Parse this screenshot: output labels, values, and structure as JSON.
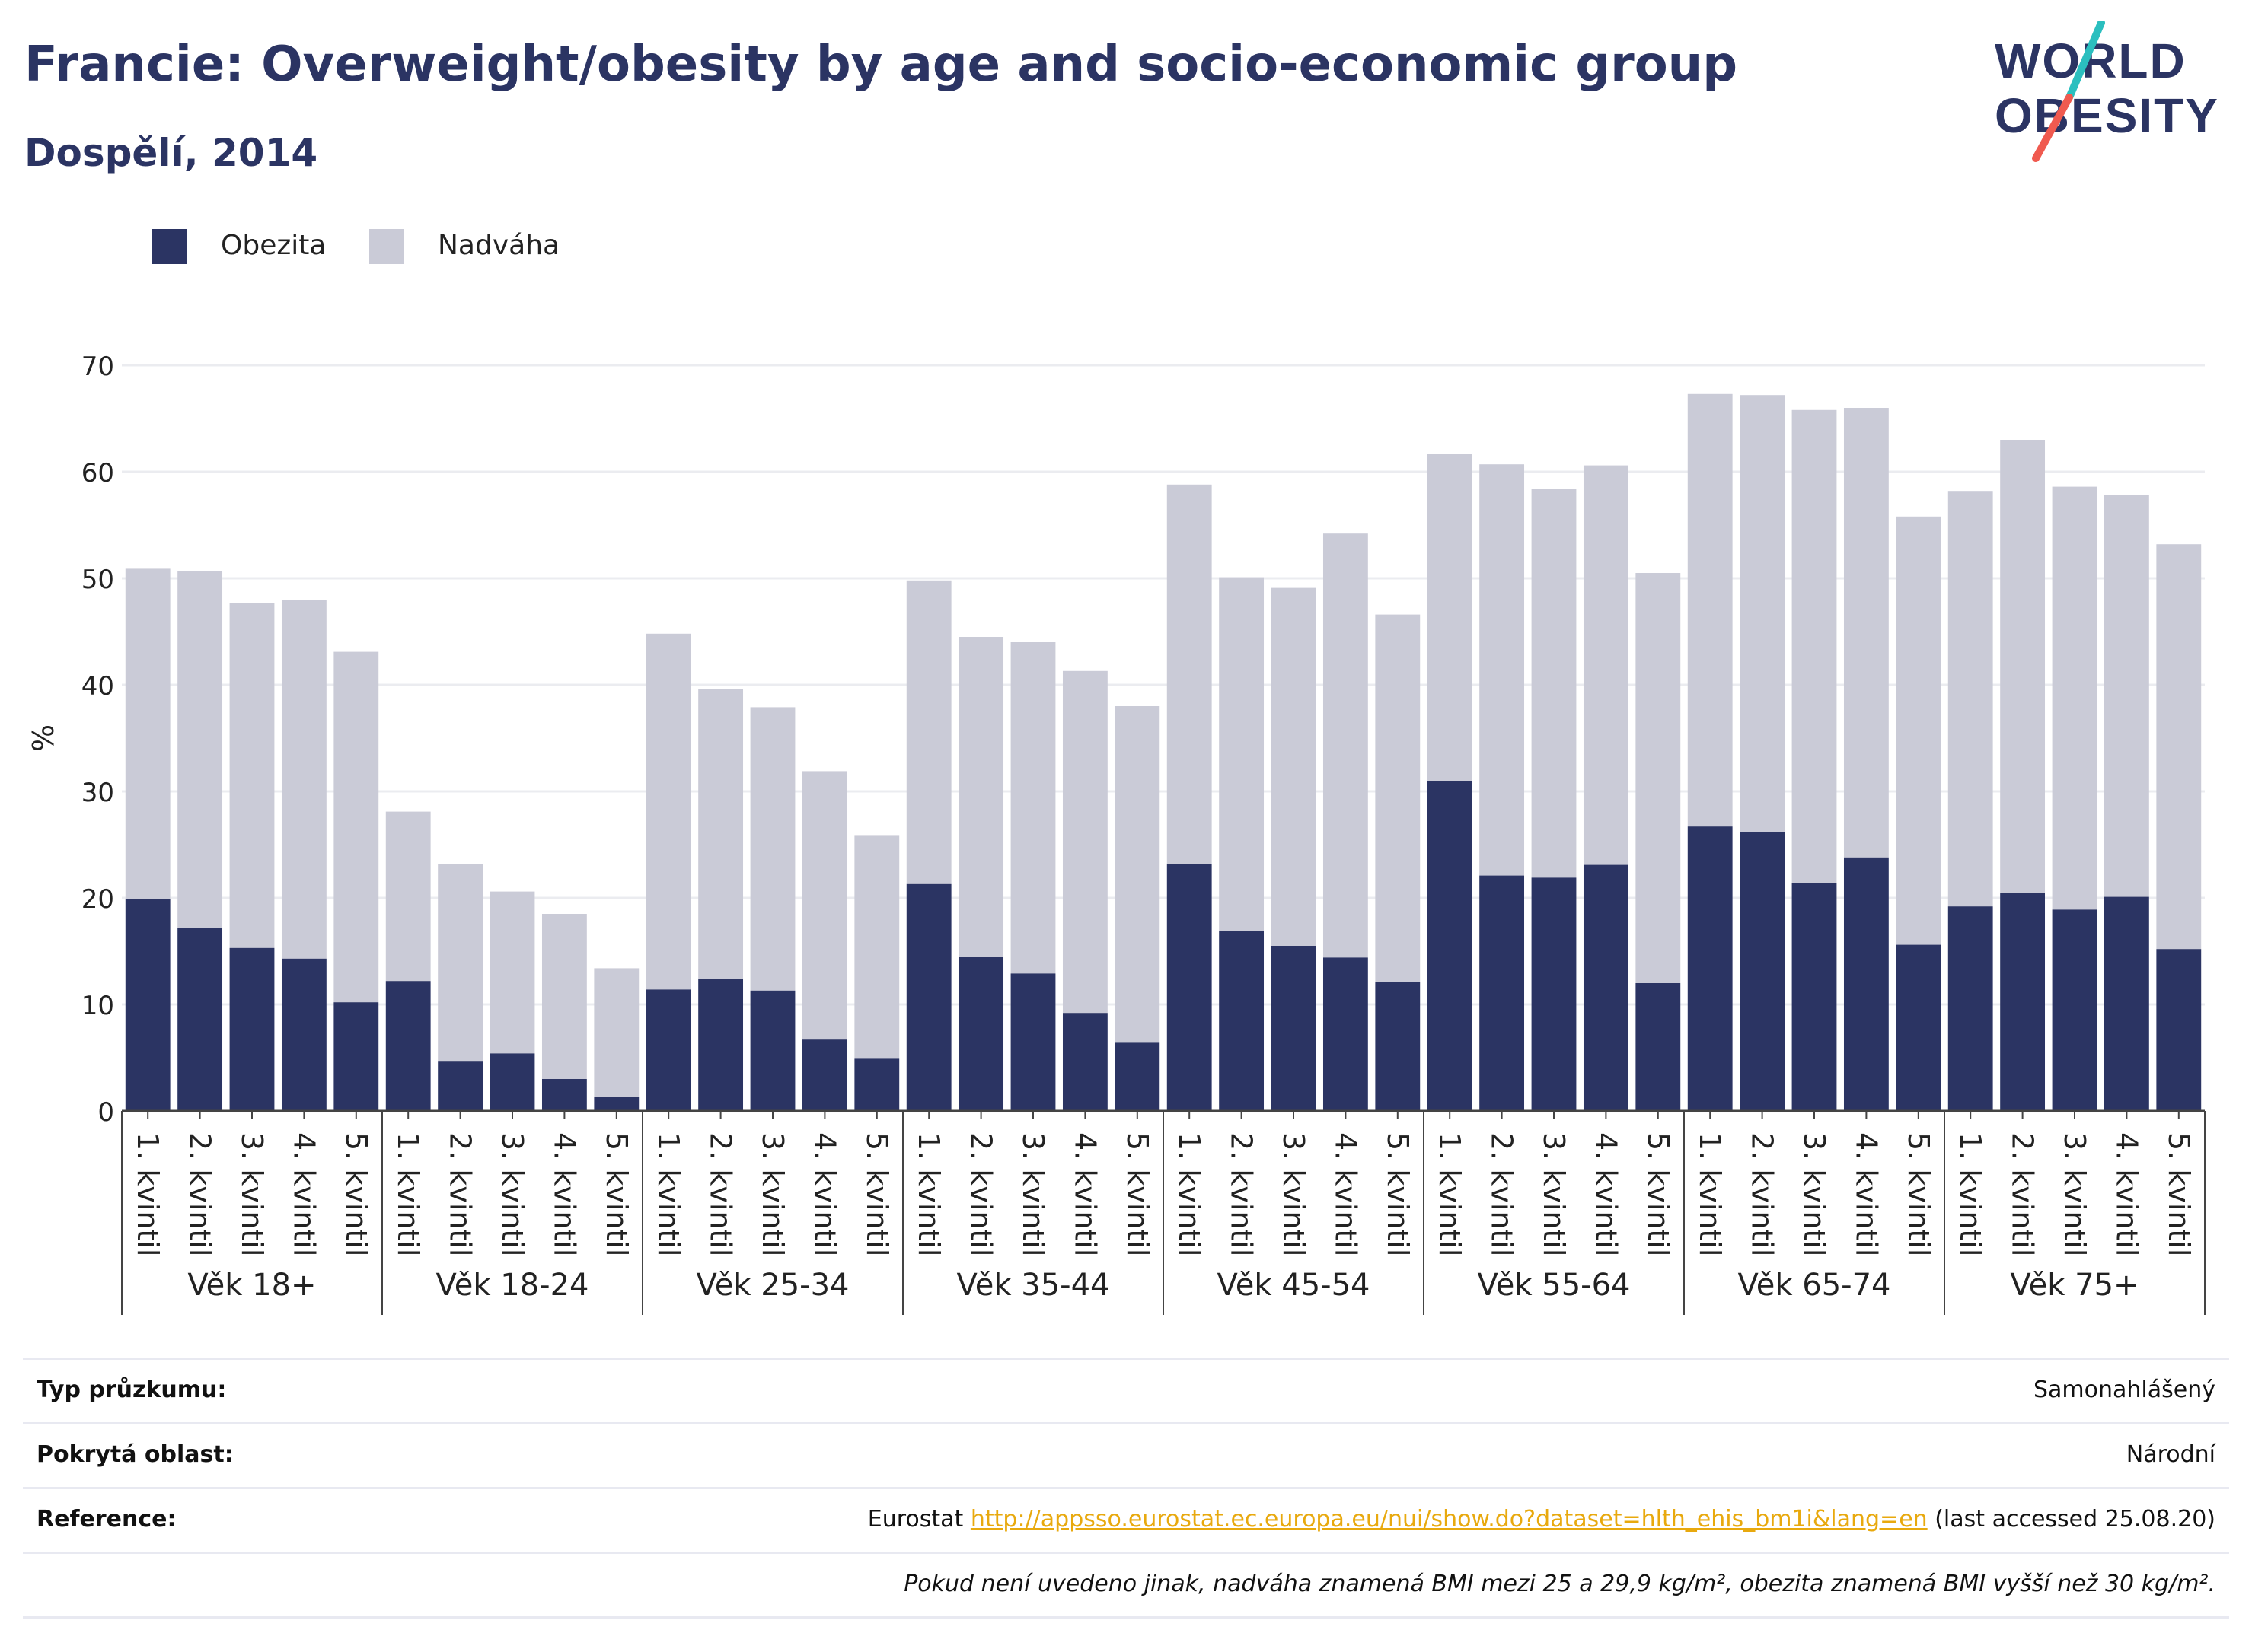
{
  "header": {
    "title": "Francie: Overweight/obesity by age and socio-economic group",
    "subtitle": "Dospělí, 2014"
  },
  "logo": {
    "line1": "WORLD",
    "line2": "OBESITY"
  },
  "legend": {
    "items": [
      {
        "label": "Obezita",
        "color": "#2b3463"
      },
      {
        "label": "Nadváha",
        "color": "#cacbd7"
      }
    ]
  },
  "chart_data": {
    "type": "bar",
    "stacked": true,
    "ylabel": "%",
    "ylim": [
      0,
      70
    ],
    "yticks": [
      0,
      10,
      20,
      30,
      40,
      50,
      60,
      70
    ],
    "grid": true,
    "legend_position": "top-left",
    "groups": [
      "Věk 18+",
      "Věk 18-24",
      "Věk 25-34",
      "Věk 35-44",
      "Věk 45-54",
      "Věk 55-64",
      "Věk 65-74",
      "Věk 75+"
    ],
    "categories": [
      "1. kvintil",
      "2. kvintil",
      "3. kvintil",
      "4. kvintil",
      "5. kvintil"
    ],
    "series": [
      {
        "name": "Obezita",
        "color": "#2b3463",
        "values": [
          [
            19.9,
            17.2,
            15.3,
            14.3,
            10.2
          ],
          [
            12.2,
            4.7,
            5.4,
            3.0,
            1.3
          ],
          [
            11.4,
            12.4,
            11.3,
            6.7,
            4.9
          ],
          [
            21.3,
            14.5,
            12.9,
            9.2,
            6.4
          ],
          [
            23.2,
            16.9,
            15.5,
            14.4,
            12.1
          ],
          [
            31.0,
            22.1,
            21.9,
            23.1,
            12.0
          ],
          [
            26.7,
            26.2,
            21.4,
            23.8,
            15.6
          ],
          [
            19.2,
            20.5,
            18.9,
            20.1,
            15.2
          ]
        ]
      },
      {
        "name": "Nadváha",
        "color": "#cacbd7",
        "values": [
          [
            31.0,
            33.5,
            32.4,
            33.7,
            32.9
          ],
          [
            15.9,
            18.5,
            15.2,
            15.5,
            12.1
          ],
          [
            33.4,
            27.2,
            26.6,
            25.2,
            21.0
          ],
          [
            28.5,
            30.0,
            31.1,
            32.1,
            31.6
          ],
          [
            35.6,
            33.2,
            33.6,
            39.8,
            34.5
          ],
          [
            30.7,
            38.6,
            36.5,
            37.5,
            38.5
          ],
          [
            40.6,
            41.0,
            44.4,
            42.2,
            40.2
          ],
          [
            39.0,
            42.5,
            39.7,
            37.7,
            38.0
          ]
        ]
      }
    ]
  },
  "footer": {
    "survey_type_label": "Typ průzkumu:",
    "survey_type_value": "Samonahlášený",
    "coverage_label": "Pokrytá oblast:",
    "coverage_value": "Národní",
    "reference_label": "Reference:",
    "reference_prefix": "Eurostat",
    "reference_url": "http://appsso.eurostat.ec.europa.eu/nui/show.do?dataset=hlth_ehis_bm1i&lang=en",
    "reference_suffix": "(last accessed 25.08.20)",
    "note": "Pokud není uvedeno jinak, nadváha znamená BMI mezi 25 a 29,9 kg/m², obezita znamená BMI vyšší než 30 kg/m²."
  }
}
